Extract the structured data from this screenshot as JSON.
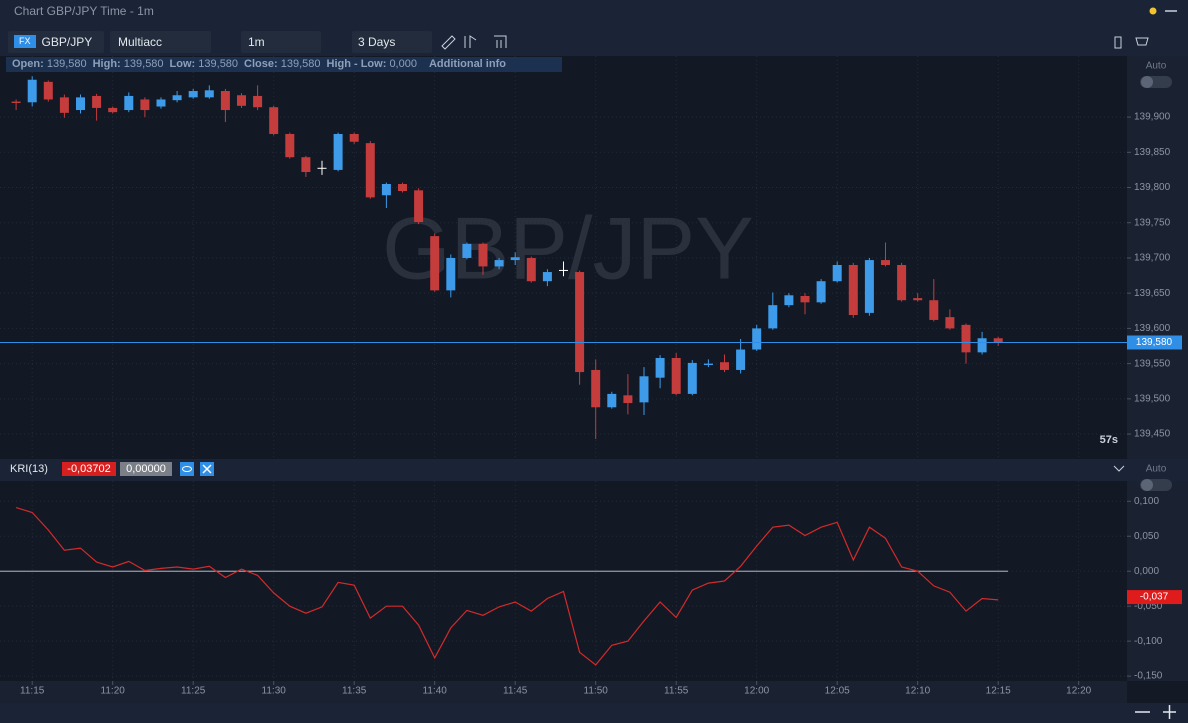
{
  "ui": {
    "window_title": "Chart GBP/JPY Time - 1m",
    "fx_badge": "FX",
    "symbol": "GBP/JPY",
    "account": "Multiacc",
    "timeframe": "1m",
    "range": "3 Days",
    "info": [
      {
        "label": "Open:",
        "value": "139,580"
      },
      {
        "label": "High:",
        "value": "139,580"
      },
      {
        "label": "Low:",
        "value": "139,580"
      },
      {
        "label": "Close:",
        "value": "139,580"
      },
      {
        "label": "High - Low:",
        "value": "0,000"
      }
    ],
    "additional_info": "Additional info",
    "auto_labels": [
      "Auto",
      "Auto"
    ],
    "countdown": "57s",
    "watermark": "GBP/JPY",
    "indicator_name": "KRI(13)",
    "indicator_values": [
      "-0,03702",
      "0,00000"
    ]
  },
  "chart_data": [
    {
      "type": "candlestick",
      "up_color": "#3d9be9",
      "down_color": "#c43c3c",
      "doji_color": "#ffffff",
      "grid": true,
      "x": [
        "11:14",
        "11:15",
        "11:16",
        "11:17",
        "11:18",
        "11:19",
        "11:20",
        "11:21",
        "11:22",
        "11:23",
        "11:24",
        "11:25",
        "11:26",
        "11:27",
        "11:28",
        "11:29",
        "11:30",
        "11:31",
        "11:32",
        "11:33",
        "11:34",
        "11:35",
        "11:36",
        "11:37",
        "11:38",
        "11:39",
        "11:40",
        "11:41",
        "11:42",
        "11:43",
        "11:44",
        "11:45",
        "11:46",
        "11:47",
        "11:48",
        "11:49",
        "11:50",
        "11:51",
        "11:52",
        "11:53",
        "11:54",
        "11:55",
        "11:56",
        "11:57",
        "11:58",
        "11:59",
        "12:00",
        "12:01",
        "12:02",
        "12:03",
        "12:04",
        "12:05",
        "12:06",
        "12:07",
        "12:08",
        "12:09",
        "12:10",
        "12:11",
        "12:12",
        "12:13",
        "12:14",
        "12:15"
      ],
      "open": [
        139.922,
        139.921,
        139.95,
        139.928,
        139.91,
        139.93,
        139.913,
        139.91,
        139.925,
        139.915,
        139.924,
        139.928,
        139.928,
        139.937,
        139.931,
        139.93,
        139.914,
        139.876,
        139.843,
        139.828,
        139.825,
        139.876,
        139.863,
        139.789,
        139.805,
        139.796,
        139.731,
        139.654,
        139.7,
        139.72,
        139.688,
        139.697,
        139.7,
        139.667,
        139.683,
        139.68,
        139.541,
        139.488,
        139.505,
        139.495,
        139.53,
        139.558,
        139.507,
        139.548,
        139.552,
        139.541,
        139.57,
        139.6,
        139.633,
        139.646,
        139.637,
        139.667,
        139.69,
        139.622,
        139.697,
        139.69,
        139.643,
        139.64,
        139.616,
        139.605,
        139.566,
        139.586
      ],
      "high": [
        139.925,
        139.958,
        139.952,
        139.932,
        139.932,
        139.933,
        139.915,
        139.935,
        139.928,
        139.928,
        139.937,
        139.94,
        139.945,
        139.94,
        139.934,
        139.945,
        139.916,
        139.878,
        139.845,
        139.838,
        139.878,
        139.878,
        139.866,
        139.807,
        139.807,
        139.799,
        139.735,
        139.705,
        139.722,
        139.722,
        139.7,
        139.708,
        139.702,
        139.684,
        139.695,
        139.682,
        139.556,
        139.51,
        139.535,
        139.545,
        139.562,
        139.565,
        139.555,
        139.556,
        139.563,
        139.585,
        139.605,
        139.651,
        139.65,
        139.65,
        139.67,
        139.695,
        139.693,
        139.7,
        139.722,
        139.693,
        139.65,
        139.67,
        139.627,
        139.607,
        139.595,
        139.588
      ],
      "low": [
        139.91,
        139.915,
        139.922,
        139.899,
        139.905,
        139.895,
        139.905,
        139.907,
        139.9,
        139.912,
        139.921,
        139.926,
        139.926,
        139.893,
        139.913,
        139.91,
        139.874,
        139.841,
        139.815,
        139.818,
        139.823,
        139.862,
        139.784,
        139.771,
        139.793,
        139.748,
        139.652,
        139.644,
        139.698,
        139.676,
        139.684,
        139.69,
        139.665,
        139.66,
        139.674,
        139.52,
        139.443,
        139.486,
        139.478,
        139.477,
        139.515,
        139.505,
        139.505,
        139.545,
        139.538,
        139.536,
        139.568,
        139.598,
        139.63,
        139.62,
        139.635,
        139.665,
        139.615,
        139.618,
        139.688,
        139.638,
        139.638,
        139.61,
        139.598,
        139.55,
        139.563,
        139.575
      ],
      "close": [
        139.92,
        139.953,
        139.925,
        139.906,
        139.928,
        139.913,
        139.907,
        139.93,
        139.91,
        139.925,
        139.931,
        139.937,
        139.938,
        139.91,
        139.916,
        139.914,
        139.876,
        139.843,
        139.822,
        139.828,
        139.876,
        139.865,
        139.786,
        139.805,
        139.795,
        139.751,
        139.654,
        139.7,
        139.72,
        139.688,
        139.697,
        139.701,
        139.667,
        139.68,
        139.683,
        139.538,
        139.488,
        139.507,
        139.494,
        139.532,
        139.558,
        139.507,
        139.551,
        139.55,
        139.541,
        139.57,
        139.6,
        139.633,
        139.647,
        139.637,
        139.667,
        139.69,
        139.619,
        139.697,
        139.69,
        139.64,
        139.64,
        139.612,
        139.6,
        139.566,
        139.586,
        139.58
      ],
      "xlim": [
        "11:13",
        "12:23"
      ],
      "ylim": [
        139.416,
        139.964
      ],
      "yticks": [
        {
          "value": 139.45,
          "label": "139,450"
        },
        {
          "value": 139.5,
          "label": "139,500"
        },
        {
          "value": 139.55,
          "label": "139,550"
        },
        {
          "value": 139.6,
          "label": "139,600"
        },
        {
          "value": 139.65,
          "label": "139,650"
        },
        {
          "value": 139.7,
          "label": "139,700"
        },
        {
          "value": 139.75,
          "label": "139,750"
        },
        {
          "value": 139.8,
          "label": "139,800"
        },
        {
          "value": 139.85,
          "label": "139,850"
        },
        {
          "value": 139.9,
          "label": "139,900"
        }
      ],
      "xticks": [
        "11:15",
        "11:20",
        "11:25",
        "11:30",
        "11:35",
        "11:40",
        "11:45",
        "11:50",
        "11:55",
        "12:00",
        "12:05",
        "12:10",
        "12:15",
        "12:20"
      ],
      "last_price": {
        "value": 139.58,
        "label": "139,580"
      },
      "last_color": "#2f8ee6"
    },
    {
      "type": "line",
      "color": "#d42a2a",
      "grid": true,
      "x": [
        "11:14",
        "11:15",
        "11:16",
        "11:17",
        "11:18",
        "11:19",
        "11:20",
        "11:21",
        "11:22",
        "11:23",
        "11:24",
        "11:25",
        "11:26",
        "11:27",
        "11:28",
        "11:29",
        "11:30",
        "11:31",
        "11:32",
        "11:33",
        "11:34",
        "11:35",
        "11:36",
        "11:37",
        "11:38",
        "11:39",
        "11:40",
        "11:41",
        "11:42",
        "11:43",
        "11:44",
        "11:45",
        "11:46",
        "11:47",
        "11:48",
        "11:49",
        "11:50",
        "11:51",
        "11:52",
        "11:53",
        "11:54",
        "11:55",
        "11:56",
        "11:57",
        "11:58",
        "11:59",
        "12:00",
        "12:01",
        "12:02",
        "12:03",
        "12:04",
        "12:05",
        "12:06",
        "12:07",
        "12:08",
        "12:09",
        "12:10",
        "12:11",
        "12:12",
        "12:13",
        "12:14",
        "12:15"
      ],
      "values": [
        0.091,
        0.084,
        0.059,
        0.03,
        0.033,
        0.013,
        0.006,
        0.014,
        0.001,
        0.004,
        0.006,
        0.003,
        0.007,
        -0.009,
        0.003,
        -0.006,
        -0.031,
        -0.05,
        -0.06,
        -0.051,
        -0.016,
        -0.02,
        -0.067,
        -0.05,
        -0.05,
        -0.077,
        -0.124,
        -0.081,
        -0.056,
        -0.063,
        -0.051,
        -0.044,
        -0.057,
        -0.039,
        -0.029,
        -0.116,
        -0.134,
        -0.106,
        -0.1,
        -0.071,
        -0.044,
        -0.066,
        -0.027,
        -0.017,
        -0.014,
        0.007,
        0.036,
        0.063,
        0.066,
        0.051,
        0.063,
        0.07,
        0.016,
        0.063,
        0.047,
        0.006,
        0,
        -0.021,
        -0.03,
        -0.057,
        -0.039,
        -0.041
      ],
      "xlim": [
        "11:13",
        "12:23"
      ],
      "ylim": [
        -0.157,
        0.129
      ],
      "yticks": [
        {
          "value": -0.15,
          "label": "-0,150"
        },
        {
          "value": -0.1,
          "label": "-0,100"
        },
        {
          "value": -0.05,
          "label": "-0,050"
        },
        {
          "value": 0,
          "label": "0,000"
        },
        {
          "value": 0.05,
          "label": "0,050"
        },
        {
          "value": 0.1,
          "label": "0,100"
        }
      ],
      "xticks": [
        "11:15",
        "11:20",
        "11:25",
        "11:30",
        "11:35",
        "11:40",
        "11:45",
        "11:50",
        "11:55",
        "12:00",
        "12:05",
        "12:10",
        "12:15",
        "12:20"
      ],
      "zero_line": 0,
      "last_value": {
        "value": -0.037,
        "label": "-0,037"
      },
      "last_color": "#e01b1b"
    }
  ]
}
